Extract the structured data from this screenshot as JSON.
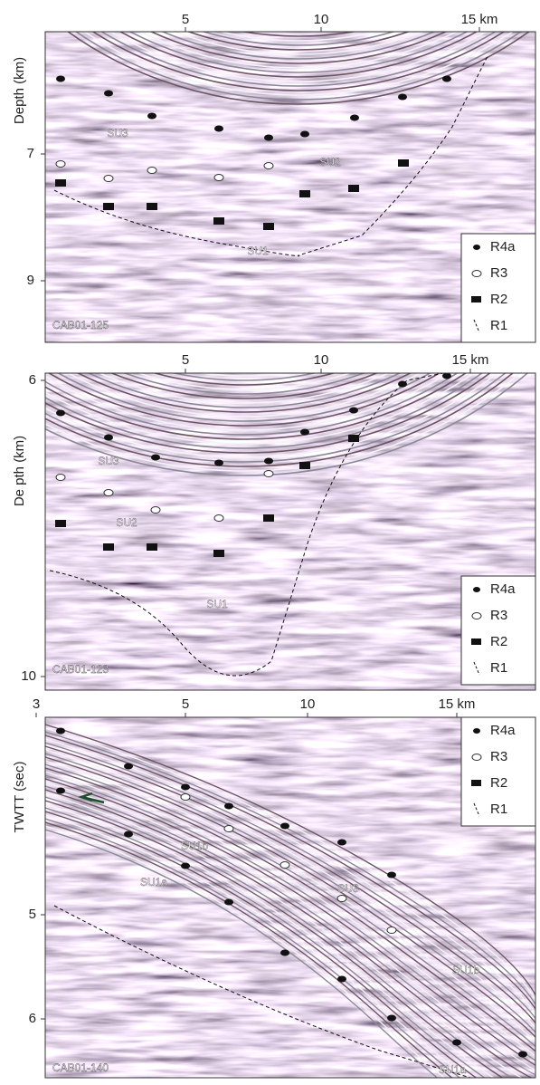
{
  "panels": [
    {
      "profile": "CAB01-125",
      "y_label": "Depth (km)",
      "x_ticks": [
        "5",
        "10",
        "15 km"
      ],
      "y_ticks": [
        "7",
        "9"
      ],
      "units": [
        "SU3",
        "SU2",
        "SU1"
      ],
      "legend": [
        "R4a",
        "R3",
        "R2",
        "R1"
      ]
    },
    {
      "profile": "CAB01-123",
      "y_label": "De pth (km)",
      "x_ticks": [
        "5",
        "10",
        "15 km"
      ],
      "y_ticks": [
        "6",
        "10"
      ],
      "units": [
        "SU3",
        "SU2",
        "SU1"
      ],
      "legend": [
        "R4a",
        "R3",
        "R2",
        "R1"
      ]
    },
    {
      "profile": "CAB01-140",
      "y_label": "TWTT (sec)",
      "x_ticks": [
        "3",
        "5",
        "10",
        "15 km"
      ],
      "y_ticks": [
        "5",
        "6"
      ],
      "units": [
        "SU1b",
        "SU1a",
        "SU3",
        "SU1b",
        "SU1a"
      ],
      "legend": [
        "R4a",
        "R3",
        "R2",
        "R1"
      ]
    }
  ]
}
